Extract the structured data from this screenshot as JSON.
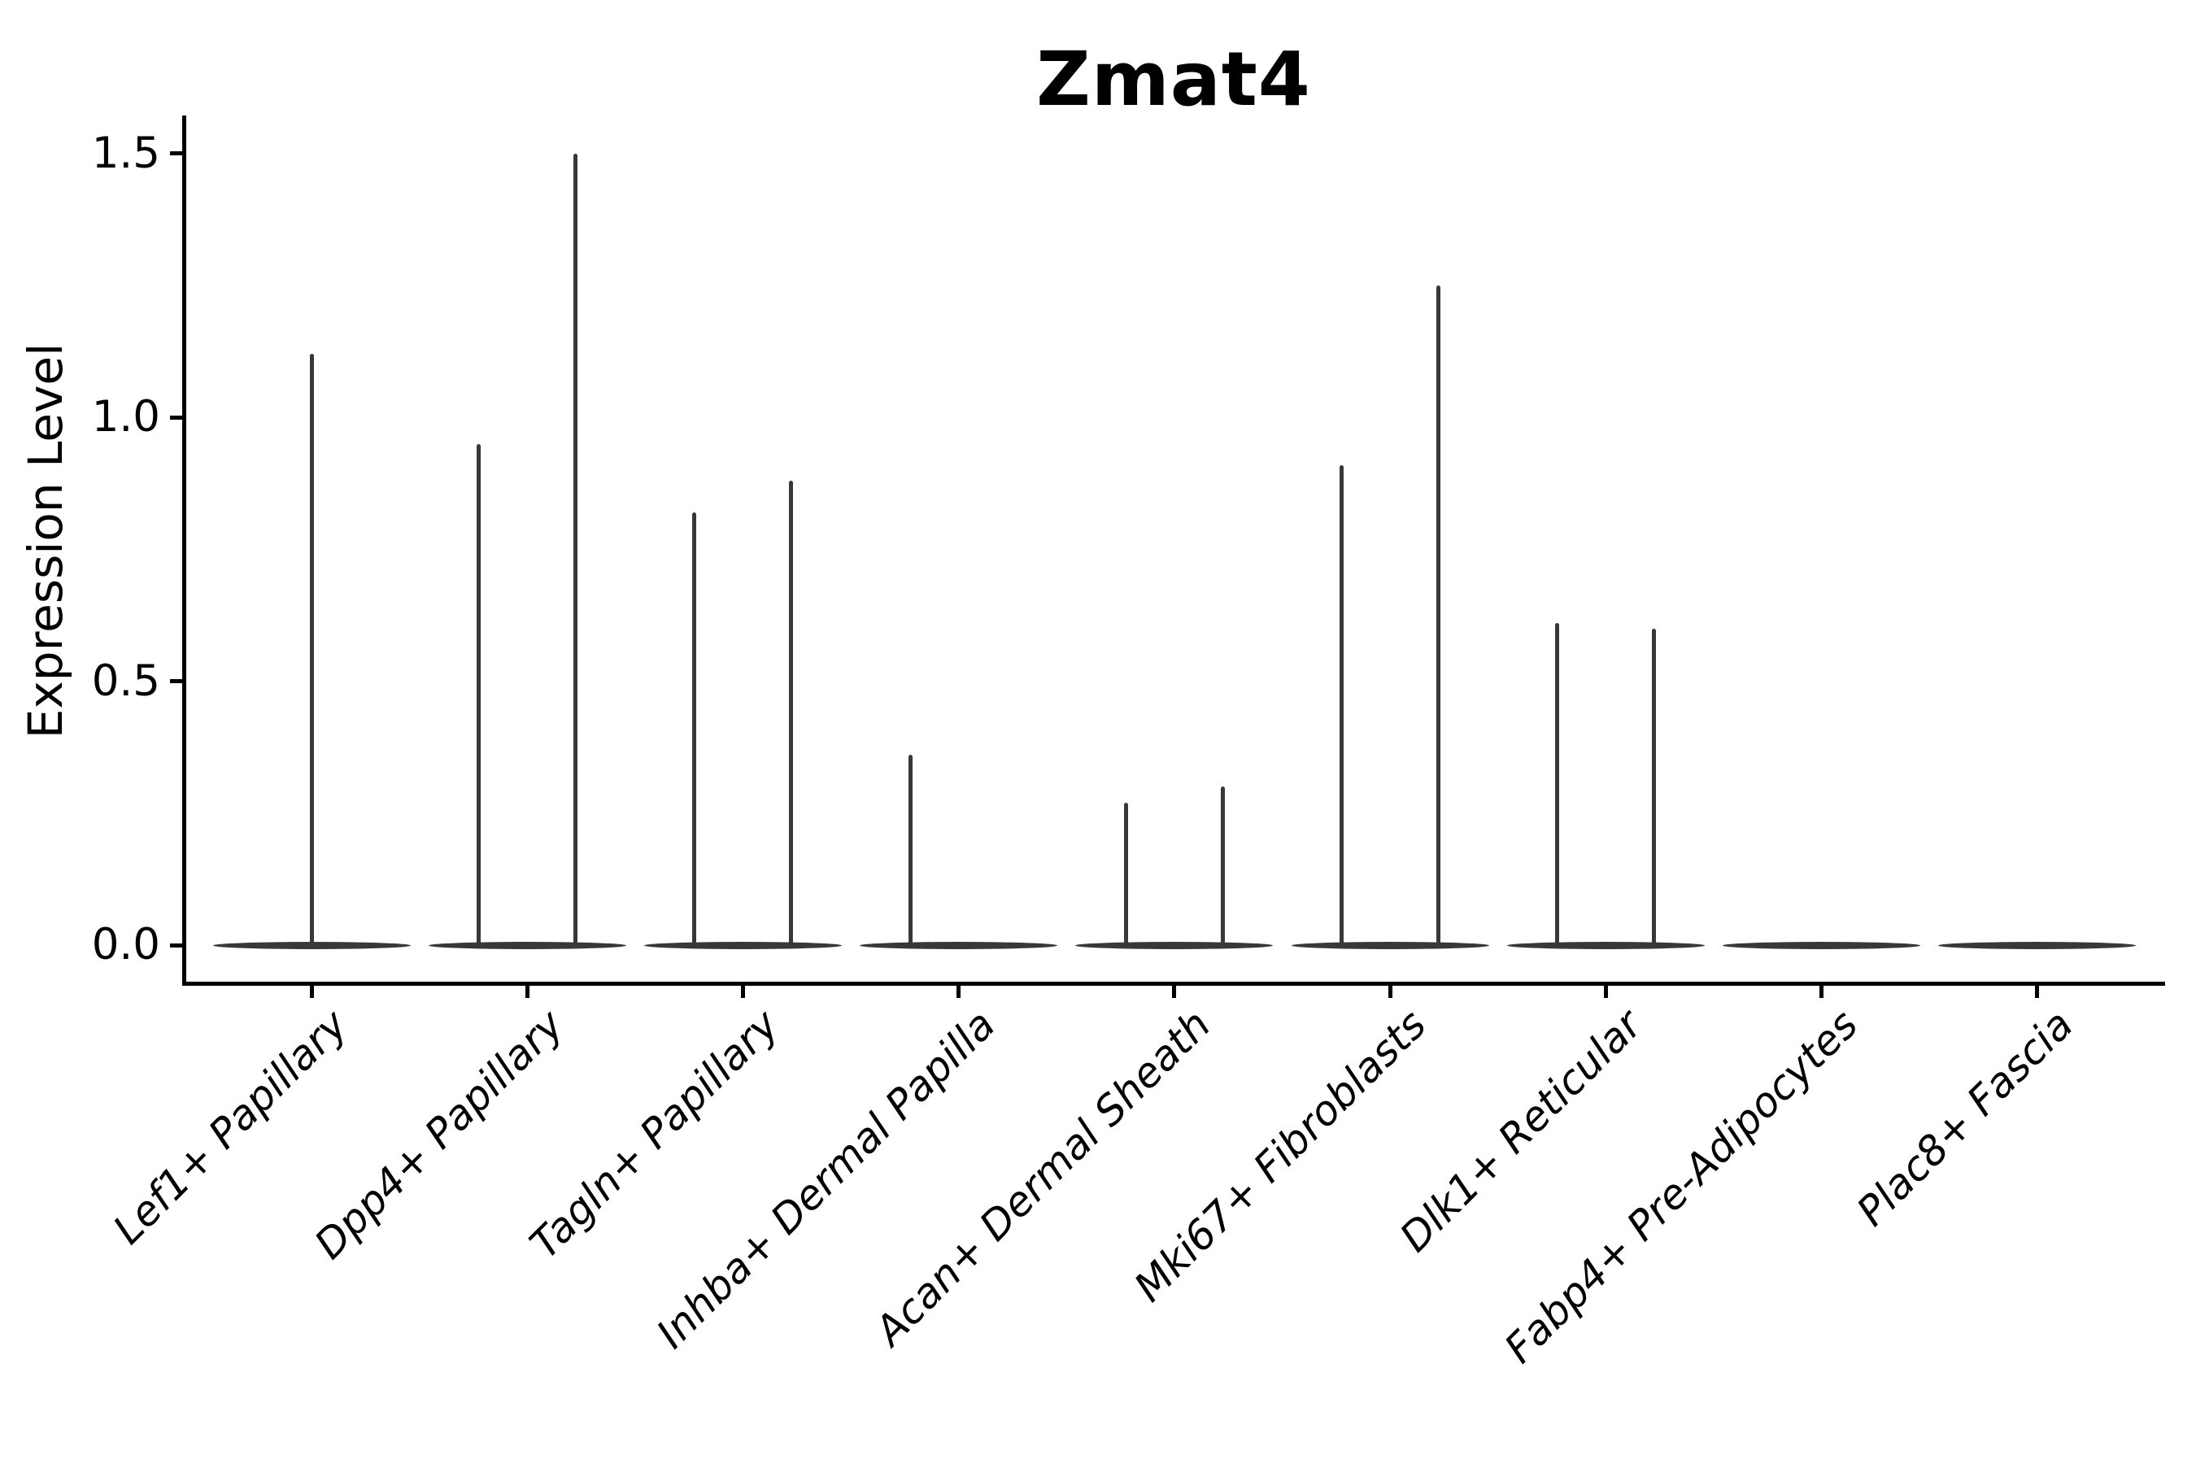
{
  "title": {
    "text": "Zmat4"
  },
  "y_axis": {
    "label": "Expression Level",
    "tick_labels": [
      "0.0",
      "0.5",
      "1.0",
      "1.5"
    ],
    "tick_values": [
      0.0,
      0.5,
      1.0,
      1.5
    ]
  },
  "style": {
    "background": "#ffffff",
    "axis_color": "#000000",
    "text_color": "#000000",
    "violin_color": "#383838"
  },
  "chart_data": {
    "type": "violin",
    "title": "Zmat4",
    "xlabel": "",
    "ylabel": "Expression Level",
    "ylim": [
      -0.07,
      1.57
    ],
    "yticks": [
      0.0,
      0.5,
      1.0,
      1.5
    ],
    "grid": false,
    "legend": "none",
    "x_tick_style": "italic, rotated 45deg, right-aligned",
    "description": "Single-cell gene expression violin plot for gene Zmat4. Each category shows a flat density lens at expression 0 (most cells zero) with thin vertical spikes reaching the maximum expression values. Some categories show two spike slots (left/right of category center), offset about 0.22 category-widths.",
    "categories": [
      "Lef1+ Papillary",
      "Dpp4+ Papillary",
      "Tagln+ Papillary",
      "Inhba+ Dermal Papilla",
      "Acan+ Dermal Sheath",
      "Mki67+ Fibroblasts",
      "Dlk1+ Reticular",
      "Fabp4+ Pre-Adipocytes",
      "Plac8+ Fascia"
    ],
    "violins": [
      {
        "category": "Lef1+ Papillary",
        "baseline_at_zero": true,
        "spikes": [
          {
            "slot": "center",
            "max": 1.12
          }
        ]
      },
      {
        "category": "Dpp4+ Papillary",
        "baseline_at_zero": true,
        "spikes": [
          {
            "slot": "left",
            "max": 0.95
          },
          {
            "slot": "right",
            "max": 1.5
          }
        ]
      },
      {
        "category": "Tagln+ Papillary",
        "baseline_at_zero": true,
        "spikes": [
          {
            "slot": "left",
            "max": 0.82
          },
          {
            "slot": "right",
            "max": 0.88
          }
        ]
      },
      {
        "category": "Inhba+ Dermal Papilla",
        "baseline_at_zero": true,
        "spikes": [
          {
            "slot": "left",
            "max": 0.36
          }
        ]
      },
      {
        "category": "Acan+ Dermal Sheath",
        "baseline_at_zero": true,
        "spikes": [
          {
            "slot": "left",
            "max": 0.27
          },
          {
            "slot": "right",
            "max": 0.3
          }
        ]
      },
      {
        "category": "Mki67+ Fibroblasts",
        "baseline_at_zero": true,
        "spikes": [
          {
            "slot": "left",
            "max": 0.91
          },
          {
            "slot": "right",
            "max": 1.25
          }
        ]
      },
      {
        "category": "Dlk1+ Reticular",
        "baseline_at_zero": true,
        "spikes": [
          {
            "slot": "left",
            "max": 0.61
          },
          {
            "slot": "right",
            "max": 0.6
          }
        ]
      },
      {
        "category": "Fabp4+ Pre-Adipocytes",
        "baseline_at_zero": true,
        "spikes": []
      },
      {
        "category": "Plac8+ Fascia",
        "baseline_at_zero": true,
        "spikes": []
      }
    ]
  }
}
